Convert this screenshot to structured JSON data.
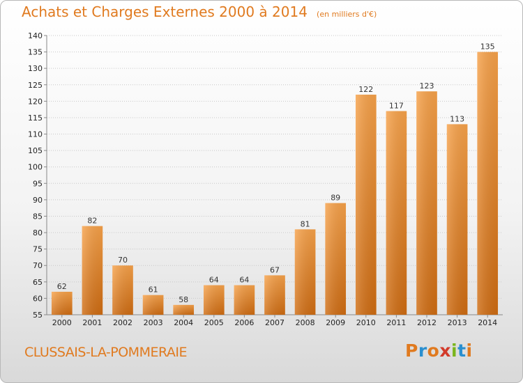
{
  "header": {
    "title": "Achats et Charges Externes 2000 à 2014",
    "unit": "(en milliers d'€)"
  },
  "footer": {
    "commune": "CLUSSAIS-LA-POMMERAIE",
    "logo_text": "Proxiti",
    "logo_colors": [
      "#e07a1f",
      "#2a8fcf",
      "#e07a1f",
      "#d23a2a",
      "#7ab51d",
      "#2a8fcf",
      "#e07a1f"
    ]
  },
  "chart_data": {
    "type": "bar",
    "title": "Achats et Charges Externes 2000 à 2014",
    "xlabel": "",
    "ylabel": "",
    "categories": [
      "2000",
      "2001",
      "2002",
      "2003",
      "2004",
      "2005",
      "2006",
      "2007",
      "2008",
      "2009",
      "2010",
      "2011",
      "2012",
      "2013",
      "2014"
    ],
    "values": [
      62,
      82,
      70,
      61,
      58,
      64,
      64,
      67,
      81,
      89,
      122,
      117,
      123,
      113,
      135
    ],
    "ylim": [
      55,
      140
    ],
    "yticks": [
      55,
      60,
      65,
      70,
      75,
      80,
      85,
      90,
      95,
      100,
      105,
      110,
      115,
      120,
      125,
      130,
      135,
      140
    ],
    "grid": true,
    "bar_color": "#f0922e"
  }
}
